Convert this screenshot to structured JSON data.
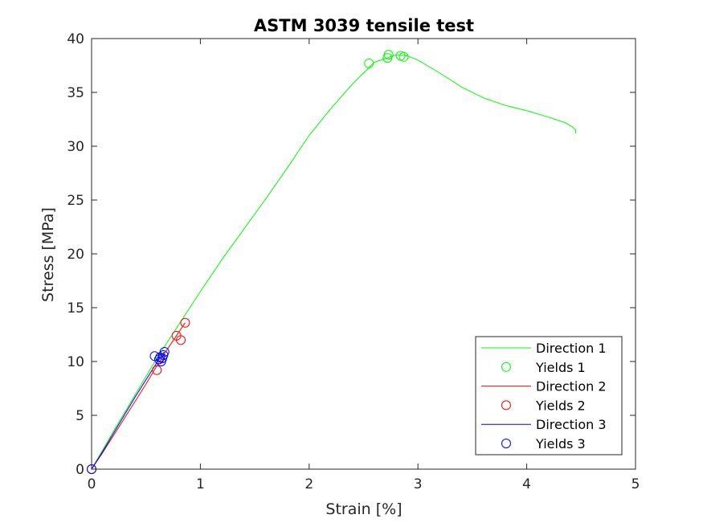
{
  "chart_data": {
    "type": "line",
    "title": "ASTM 3039 tensile test",
    "xlabel": "Strain [%]",
    "ylabel": "Stress [MPa]",
    "xlim": [
      0,
      5
    ],
    "ylim": [
      0,
      40
    ],
    "xticks": [
      0,
      1,
      2,
      3,
      4,
      5
    ],
    "yticks": [
      0,
      5,
      10,
      15,
      20,
      25,
      30,
      35,
      40
    ],
    "grid": false,
    "legend_position": "bottom-right",
    "series": [
      {
        "name": "Direction 1",
        "kind": "line",
        "color": "#00ff00",
        "x": [
          0,
          0.2,
          0.4,
          0.6,
          0.8,
          1.0,
          1.2,
          1.4,
          1.6,
          1.8,
          2.0,
          2.2,
          2.4,
          2.6,
          2.8,
          2.9,
          3.0,
          3.2,
          3.4,
          3.6,
          3.8,
          4.0,
          4.2,
          4.35,
          4.42,
          4.45,
          4.45
        ],
        "y": [
          0,
          3.5,
          6.9,
          10.3,
          13.4,
          16.5,
          19.5,
          22.3,
          25.1,
          28.0,
          31.0,
          33.5,
          35.8,
          37.8,
          38.5,
          38.4,
          38.0,
          36.8,
          35.5,
          34.5,
          33.8,
          33.3,
          32.7,
          32.2,
          31.8,
          31.5,
          31.2
        ]
      },
      {
        "name": "Yields 1",
        "kind": "markers",
        "color": "#00ff00",
        "x": [
          2.55,
          2.72,
          2.73,
          2.84,
          2.87
        ],
        "y": [
          37.7,
          38.2,
          38.5,
          38.4,
          38.3
        ]
      },
      {
        "name": "Direction 2",
        "kind": "line",
        "color": "#ff0000",
        "x": [
          0,
          0.1,
          0.2,
          0.3,
          0.4,
          0.5,
          0.6,
          0.7,
          0.8,
          0.86
        ],
        "y": [
          0,
          1.5,
          3.1,
          4.7,
          6.3,
          7.9,
          9.6,
          11.2,
          12.7,
          13.6
        ]
      },
      {
        "name": "Yields 2",
        "kind": "markers",
        "color": "#ff0000",
        "x": [
          0,
          0.6,
          0.78,
          0.82,
          0.86
        ],
        "y": [
          0,
          9.2,
          12.4,
          12.0,
          13.6
        ]
      },
      {
        "name": "Direction 3",
        "kind": "line",
        "color": "#0000ff",
        "x": [
          0,
          0.1,
          0.2,
          0.3,
          0.4,
          0.5,
          0.6,
          0.67
        ],
        "y": [
          0,
          1.6,
          3.3,
          5.0,
          6.7,
          8.3,
          9.9,
          10.9
        ]
      },
      {
        "name": "Yields 3",
        "kind": "markers",
        "color": "#0000ff",
        "x": [
          0,
          0.58,
          0.62,
          0.63,
          0.64,
          0.65,
          0.66,
          0.67
        ],
        "y": [
          0,
          10.5,
          10.2,
          10.4,
          10.0,
          10.3,
          10.6,
          10.9
        ]
      }
    ]
  }
}
